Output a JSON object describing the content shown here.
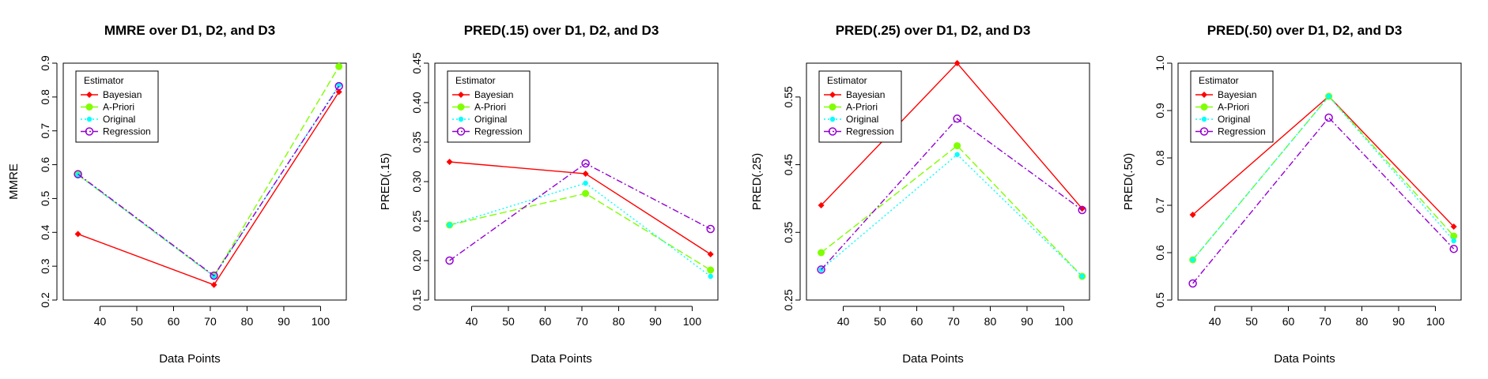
{
  "figure": {
    "series_styles": {
      "Bayesian": {
        "color": "#ff0000",
        "dash": "",
        "marker": "diamond"
      },
      "A-Priori": {
        "color": "#7fff00",
        "dash": "9,4",
        "marker": "dot-filled"
      },
      "Original": {
        "color": "#00ffff",
        "dash": "2,3",
        "marker": "dot-small"
      },
      "Regression": {
        "color": "#9400d3",
        "dash": "8,3,2,3",
        "marker": "circle-open"
      }
    }
  },
  "chart_data": [
    {
      "type": "line",
      "title": "MMRE over D1, D2, and D3",
      "xlabel": "Data Points",
      "ylabel": "MMRE",
      "x": [
        34,
        71,
        105
      ],
      "xlim": [
        30,
        107
      ],
      "ylim": [
        0.2,
        0.9
      ],
      "xticks": [
        40,
        50,
        60,
        70,
        80,
        90,
        100
      ],
      "yticks": [
        "0.2",
        "0.3",
        "0.4",
        "0.5",
        "0.6",
        "0.7",
        "0.8",
        "0.9"
      ],
      "legend_title": "Estimator",
      "legend_position": "top-left",
      "series": [
        {
          "name": "Bayesian",
          "values": [
            0.395,
            0.245,
            0.815
          ]
        },
        {
          "name": "A-Priori",
          "values": [
            0.57,
            0.27,
            0.89
          ]
        },
        {
          "name": "Original",
          "values": [
            0.57,
            0.27,
            0.835
          ]
        },
        {
          "name": "Regression",
          "values": [
            0.572,
            0.272,
            0.832
          ]
        }
      ]
    },
    {
      "type": "line",
      "title": "PRED(.15) over D1, D2, and D3",
      "xlabel": "Data Points",
      "ylabel": "PRED(.15)",
      "x": [
        34,
        71,
        105
      ],
      "xlim": [
        30,
        107
      ],
      "ylim": [
        0.15,
        0.45
      ],
      "xticks": [
        40,
        50,
        60,
        70,
        80,
        90,
        100
      ],
      "yticks": [
        "0.15",
        "0.20",
        "0.25",
        "0.30",
        "0.35",
        "0.40",
        "0.45"
      ],
      "legend_title": "Estimator",
      "legend_position": "top-left",
      "series": [
        {
          "name": "Bayesian",
          "values": [
            0.325,
            0.31,
            0.208
          ]
        },
        {
          "name": "A-Priori",
          "values": [
            0.245,
            0.285,
            0.188
          ]
        },
        {
          "name": "Original",
          "values": [
            0.245,
            0.298,
            0.18
          ]
        },
        {
          "name": "Regression",
          "values": [
            0.2,
            0.323,
            0.24
          ]
        }
      ]
    },
    {
      "type": "line",
      "title": "PRED(.25) over D1, D2, and D3",
      "xlabel": "Data Points",
      "ylabel": "PRED(.25)",
      "x": [
        34,
        71,
        105
      ],
      "xlim": [
        30,
        107
      ],
      "ylim": [
        0.25,
        0.6
      ],
      "xticks": [
        40,
        50,
        60,
        70,
        80,
        90,
        100
      ],
      "yticks": [
        "0.25",
        "0.35",
        "0.45",
        "0.55"
      ],
      "ytick_values": [
        0.25,
        0.35,
        0.45,
        0.55
      ],
      "legend_title": "Estimator",
      "legend_position": "top-left",
      "series": [
        {
          "name": "Bayesian",
          "values": [
            0.39,
            0.6,
            0.385
          ]
        },
        {
          "name": "A-Priori",
          "values": [
            0.32,
            0.478,
            0.285
          ]
        },
        {
          "name": "Original",
          "values": [
            0.295,
            0.465,
            0.285
          ]
        },
        {
          "name": "Regression",
          "values": [
            0.295,
            0.518,
            0.383
          ]
        }
      ]
    },
    {
      "type": "line",
      "title": "PRED(.50) over D1, D2, and D3",
      "xlabel": "Data Points",
      "ylabel": "PRED(.50)",
      "x": [
        34,
        71,
        105
      ],
      "xlim": [
        30,
        107
      ],
      "ylim": [
        0.5,
        1.0
      ],
      "xticks": [
        40,
        50,
        60,
        70,
        80,
        90,
        100
      ],
      "yticks": [
        "0.5",
        "0.6",
        "0.7",
        "0.8",
        "0.9",
        "1.0"
      ],
      "legend_title": "Estimator",
      "legend_position": "top-left",
      "series": [
        {
          "name": "Bayesian",
          "values": [
            0.68,
            0.93,
            0.655
          ]
        },
        {
          "name": "A-Priori",
          "values": [
            0.585,
            0.93,
            0.635
          ]
        },
        {
          "name": "Original",
          "values": [
            0.585,
            0.93,
            0.625
          ]
        },
        {
          "name": "Regression",
          "values": [
            0.535,
            0.885,
            0.608
          ]
        }
      ]
    }
  ]
}
